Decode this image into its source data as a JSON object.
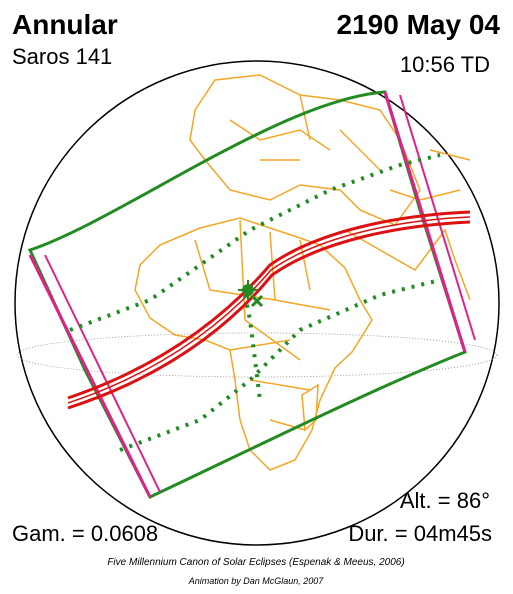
{
  "title": "Annular",
  "saros": "Saros 141",
  "date": "2190 May 04",
  "time": "10:56 TD",
  "altitude": "Alt. = 86°",
  "gamma": "Gam. = 0.0608",
  "duration": "Dur. = 04m45s",
  "credit": "Five Millennium Canon of Solar Eclipses (Espenak & Meeus, 2006)",
  "animation": "Animation by Dan McGlaun, 2007"
}
